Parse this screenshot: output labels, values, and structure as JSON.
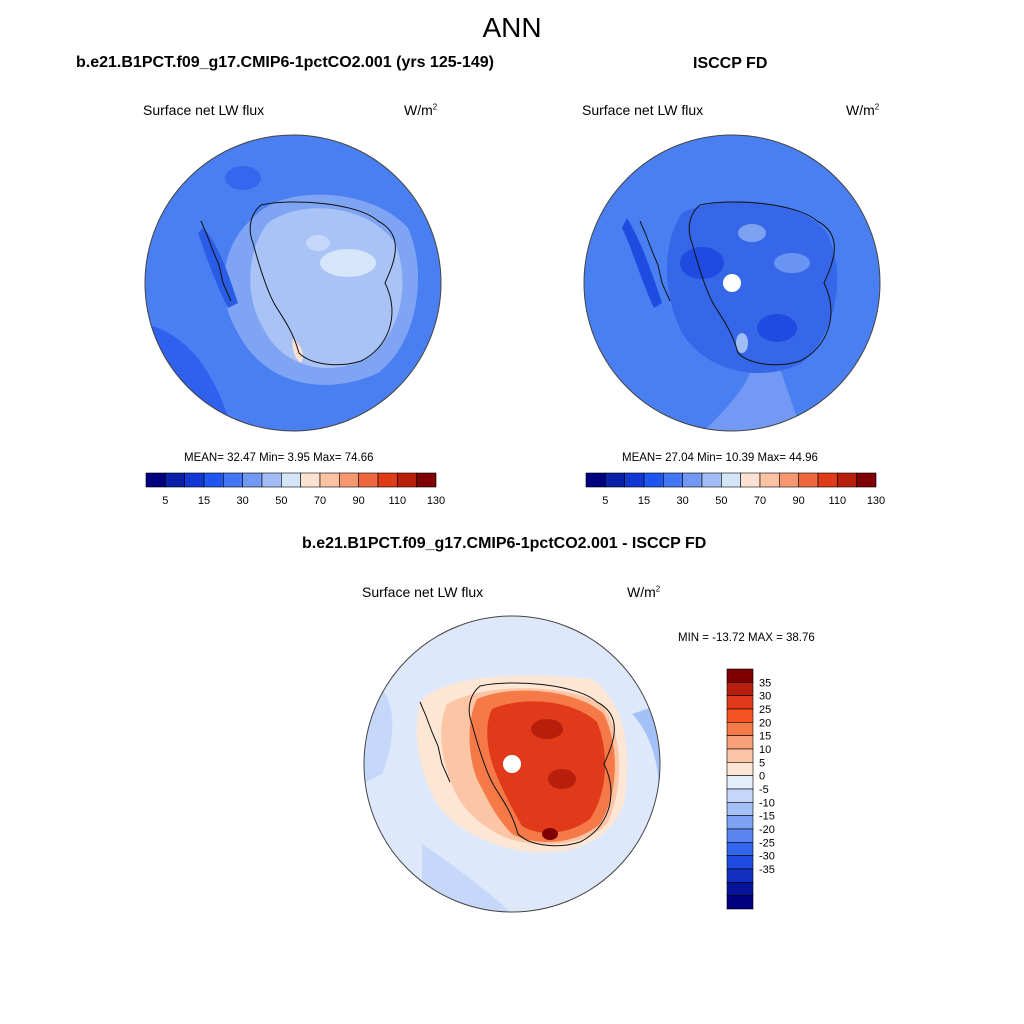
{
  "title": "ANN",
  "panels": [
    {
      "name": "model",
      "heading": "b.e21.B1PCT.f09_g17.CMIP6-1pctCO2.001 (yrs 125-149)",
      "variable": "Surface net LW flux",
      "units_base": "W/m",
      "units_exp": "2",
      "stats": "MEAN=  32.47  Min=   3.95  Max=  74.66"
    },
    {
      "name": "obs",
      "heading": "ISCCP FD",
      "variable": "Surface net LW flux",
      "units_base": "W/m",
      "units_exp": "2",
      "stats": "MEAN=  27.04  Min=  10.39  Max=  44.96"
    },
    {
      "name": "difference",
      "heading": "b.e21.B1PCT.f09_g17.CMIP6-1pctCO2.001 - ISCCP FD",
      "variable": "Surface net LW flux",
      "units_base": "W/m",
      "units_exp": "2",
      "stats": "MIN = -13.72 MAX =  38.76"
    }
  ],
  "colorbar_abs": {
    "colors": [
      "#00007f",
      "#0a20a8",
      "#1238d4",
      "#1f55f0",
      "#4479f5",
      "#7399f5",
      "#a0bdf5",
      "#d6e6fa",
      "#fde2d2",
      "#fbc2a4",
      "#f79873",
      "#f0673f",
      "#e03a1a",
      "#b81e0c",
      "#7f0000"
    ],
    "tick_labels": [
      "5",
      "15",
      "30",
      "50",
      "70",
      "90",
      "110",
      "130"
    ]
  },
  "colorbar_diff": {
    "colors_top_to_bottom": [
      "#7f0000",
      "#b81e0c",
      "#e03a1a",
      "#f55320",
      "#f57a48",
      "#f7a07a",
      "#fbc5a6",
      "#fde6d4",
      "#e4eefb",
      "#c6d8fa",
      "#a3c0f7",
      "#7ea2f2",
      "#5a85ee",
      "#3366ee",
      "#1f4be0",
      "#1230c0",
      "#07149a",
      "#00007f"
    ],
    "tick_labels_top_to_bottom": [
      "35",
      "30",
      "25",
      "20",
      "15",
      "10",
      "5",
      "0",
      "-5",
      "-10",
      "-15",
      "-20",
      "-25",
      "-30",
      "-35"
    ]
  }
}
